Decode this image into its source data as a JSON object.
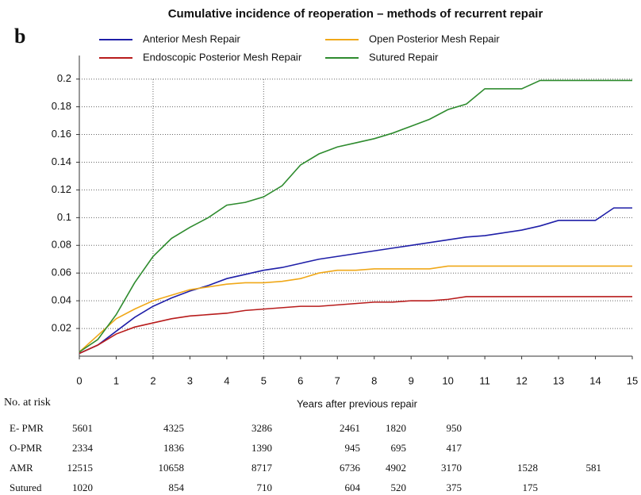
{
  "chart_data": {
    "type": "line",
    "panel_label": "b",
    "title": "Cumulative incidence of reoperation – methods of recurrent repair",
    "x_label": "Years after previous repair",
    "x": [
      0,
      0.5,
      1,
      1.5,
      2,
      2.5,
      3,
      3.5,
      4,
      4.5,
      5,
      5.5,
      6,
      6.5,
      7,
      7.5,
      8,
      8.5,
      9,
      9.5,
      10,
      10.5,
      11,
      11.5,
      12,
      12.5,
      13,
      13.5,
      14,
      14.5,
      15
    ],
    "series": [
      {
        "name": "Anterior Mesh Repair",
        "color": "#1f1fa8",
        "values": [
          0.002,
          0.008,
          0.018,
          0.028,
          0.036,
          0.042,
          0.047,
          0.051,
          0.056,
          0.059,
          0.062,
          0.064,
          0.067,
          0.07,
          0.072,
          0.074,
          0.076,
          0.078,
          0.08,
          0.082,
          0.084,
          0.086,
          0.087,
          0.089,
          0.091,
          0.094,
          0.098,
          0.098,
          0.098,
          0.107,
          0.107
        ]
      },
      {
        "name": "Open Posterior Mesh Repair",
        "color": "#f0a818",
        "values": [
          0.003,
          0.015,
          0.027,
          0.034,
          0.04,
          0.044,
          0.048,
          0.05,
          0.052,
          0.053,
          0.053,
          0.054,
          0.056,
          0.06,
          0.062,
          0.062,
          0.063,
          0.063,
          0.063,
          0.063,
          0.065,
          0.065,
          0.065,
          0.065,
          0.065,
          0.065,
          0.065,
          0.065,
          0.065,
          0.065,
          0.065
        ]
      },
      {
        "name": "Endoscopic Posterior Mesh Repair",
        "color": "#b81c1c",
        "values": [
          0.002,
          0.008,
          0.016,
          0.021,
          0.024,
          0.027,
          0.029,
          0.03,
          0.031,
          0.033,
          0.034,
          0.035,
          0.036,
          0.036,
          0.037,
          0.038,
          0.039,
          0.039,
          0.04,
          0.04,
          0.041,
          0.043,
          0.043,
          0.043,
          0.043,
          0.043,
          0.043,
          0.043,
          0.043,
          0.043,
          0.043
        ]
      },
      {
        "name": "Sutured Repair",
        "color": "#2e8b2e",
        "values": [
          0.003,
          0.012,
          0.03,
          0.053,
          0.072,
          0.085,
          0.093,
          0.1,
          0.109,
          0.111,
          0.115,
          0.123,
          0.138,
          0.146,
          0.151,
          0.154,
          0.157,
          0.161,
          0.166,
          0.171,
          0.178,
          0.182,
          0.193,
          0.193,
          0.193,
          0.199,
          0.199,
          0.199,
          0.199,
          0.199,
          0.199
        ]
      }
    ],
    "xlim": [
      0,
      15
    ],
    "xticks": [
      0,
      1,
      2,
      3,
      4,
      5,
      6,
      7,
      8,
      9,
      10,
      11,
      12,
      13,
      14,
      15
    ],
    "ylim": [
      0,
      0.217
    ],
    "yticks": [
      0.02,
      0.04,
      0.06,
      0.08,
      0.1,
      0.12,
      0.14,
      0.16,
      0.18,
      0.2
    ],
    "grid": true,
    "x_gridlines": [
      2,
      5
    ],
    "risk_table": {
      "title": "No. at risk",
      "rows": [
        {
          "label": "E- PMR",
          "values": [
            5601,
            4325,
            3286,
            2461,
            1820,
            950
          ]
        },
        {
          "label": "O-PMR",
          "values": [
            2334,
            1836,
            1390,
            945,
            695,
            417
          ]
        },
        {
          "label": "AMR",
          "values": [
            12515,
            10658,
            8717,
            6736,
            4902,
            3170,
            1528,
            581
          ]
        },
        {
          "label": "Sutured",
          "values": [
            1020,
            854,
            710,
            604,
            520,
            375,
            175
          ]
        }
      ]
    }
  }
}
